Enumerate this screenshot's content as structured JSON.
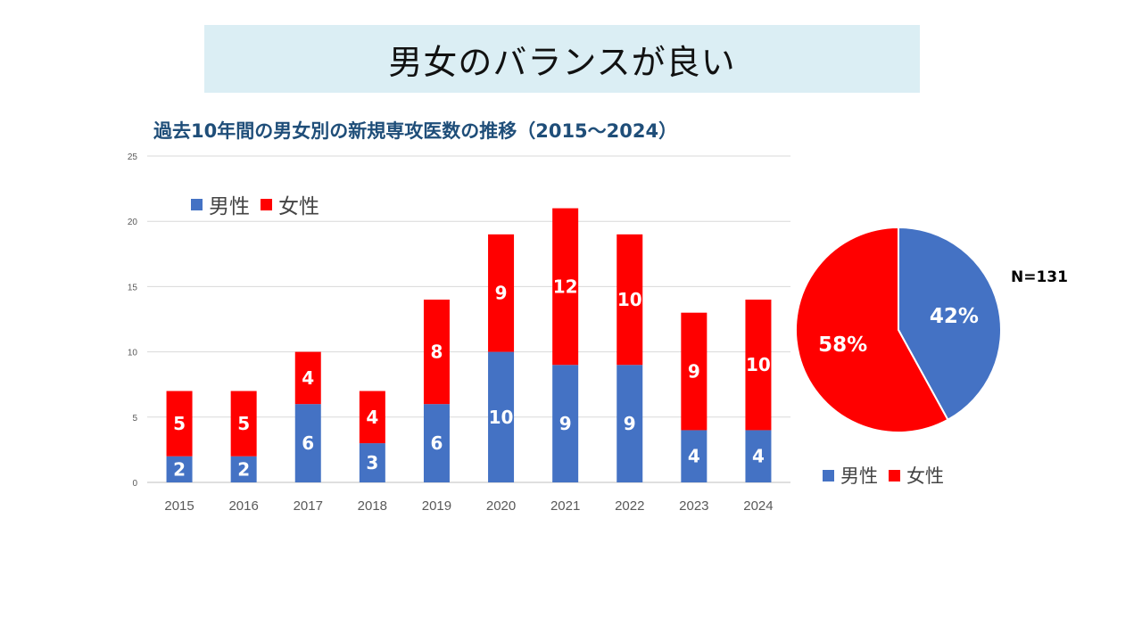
{
  "header": {
    "title": "男女のバランスが良い"
  },
  "colors": {
    "male": "#4472c4",
    "female": "#ff0000",
    "title_band": "#dbeef4",
    "chart_title": "#1f4e79"
  },
  "chart_data": [
    {
      "type": "bar",
      "stacked": true,
      "title": "過去10年間の男女別の新規専攻医数の推移（2015～2024）",
      "categories": [
        "2015",
        "2016",
        "2017",
        "2018",
        "2019",
        "2020",
        "2021",
        "2022",
        "2023",
        "2024"
      ],
      "series": [
        {
          "name": "男性",
          "values": [
            2,
            2,
            6,
            3,
            6,
            10,
            9,
            9,
            4,
            4
          ]
        },
        {
          "name": "女性",
          "values": [
            5,
            5,
            4,
            4,
            8,
            9,
            12,
            10,
            9,
            10
          ]
        }
      ],
      "ylim": [
        0,
        25
      ],
      "yticks": [
        "0",
        "5",
        "10",
        "15",
        "20",
        "25"
      ],
      "grid": true,
      "legend": "top-left"
    },
    {
      "type": "pie",
      "labels": [
        "男性",
        "女性"
      ],
      "values": [
        42,
        58
      ],
      "value_labels": [
        "42%",
        "58%"
      ],
      "annotation": "N=131",
      "legend": "bottom"
    }
  ]
}
